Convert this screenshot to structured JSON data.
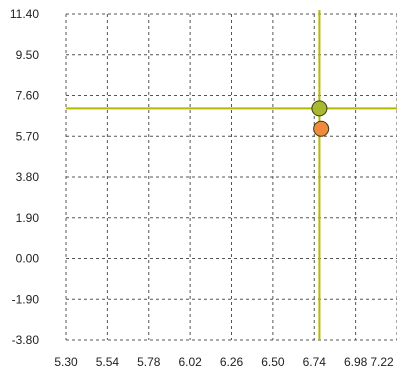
{
  "chart_data": {
    "type": "scatter",
    "title": "",
    "xlabel": "",
    "ylabel": "",
    "xlim": [
      5.3,
      7.22
    ],
    "ylim": [
      -3.8,
      11.4
    ],
    "x_ticks": [
      "5.30",
      "5.54",
      "5.78",
      "6.02",
      "6.26",
      "6.50",
      "6.74",
      "6.98",
      "7.22"
    ],
    "y_ticks": [
      "11.40",
      "9.50",
      "7.60",
      "5.70",
      "3.80",
      "1.90",
      "0.00",
      "-1.90",
      "-3.80"
    ],
    "grid": true,
    "points": [
      {
        "x": 6.77,
        "y": 7.0,
        "color": "#a8b830"
      },
      {
        "x": 6.78,
        "y": 6.05,
        "color": "#f08a3c"
      }
    ],
    "crosshair": {
      "x": 6.77,
      "y": 7.0,
      "color": "#b8b800"
    }
  }
}
